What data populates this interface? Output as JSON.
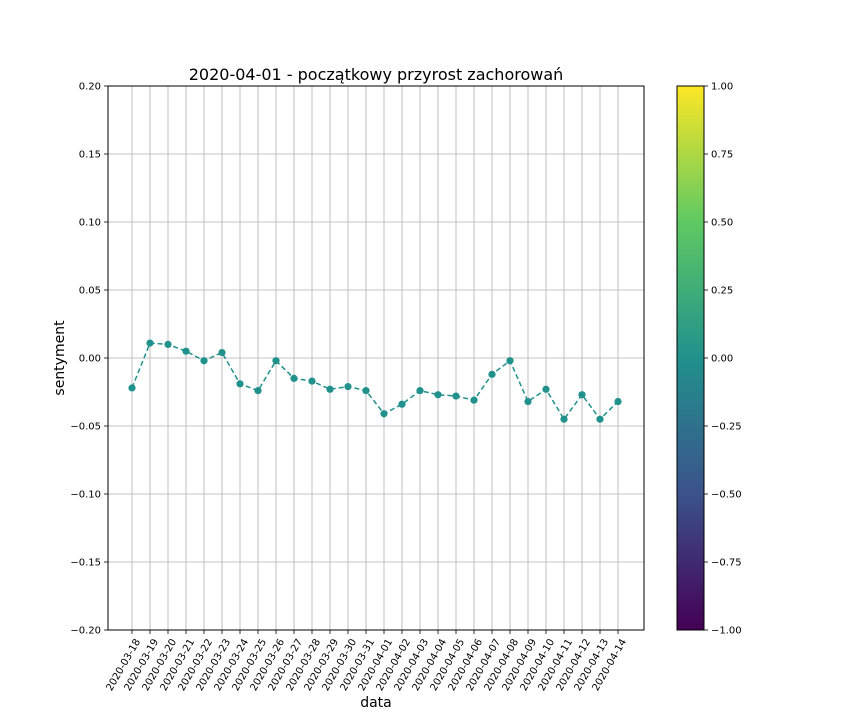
{
  "chart_data": {
    "type": "line",
    "title": "2020-04-01 - początkowy przyrost zachorowań",
    "xlabel": "data",
    "ylabel": "sentyment",
    "ylim": [
      -0.2,
      0.2
    ],
    "y_ticks": [
      "−0.20",
      "−0.15",
      "−0.10",
      "−0.05",
      "0.00",
      "0.05",
      "0.10",
      "0.15",
      "0.20"
    ],
    "grid": true,
    "marker": "circle",
    "line_style": "dashed",
    "line_color": "#21918c",
    "categories": [
      "2020-03-18",
      "2020-03-19",
      "2020-03-20",
      "2020-03-21",
      "2020-03-22",
      "2020-03-23",
      "2020-03-24",
      "2020-03-25",
      "2020-03-26",
      "2020-03-27",
      "2020-03-28",
      "2020-03-29",
      "2020-03-30",
      "2020-03-31",
      "2020-04-01",
      "2020-04-02",
      "2020-04-03",
      "2020-04-04",
      "2020-04-05",
      "2020-04-06",
      "2020-04-07",
      "2020-04-08",
      "2020-04-09",
      "2020-04-10",
      "2020-04-11",
      "2020-04-12",
      "2020-04-13",
      "2020-04-14"
    ],
    "values": [
      -0.022,
      0.011,
      0.01,
      0.005,
      -0.002,
      0.004,
      -0.019,
      -0.024,
      -0.002,
      -0.015,
      -0.017,
      -0.023,
      -0.021,
      -0.024,
      -0.041,
      -0.034,
      -0.024,
      -0.027,
      -0.028,
      -0.031,
      -0.012,
      -0.002,
      -0.032,
      -0.023,
      -0.045,
      -0.027,
      -0.045,
      -0.032
    ],
    "colorbar": {
      "colormap": "viridis",
      "range": [
        -1,
        1
      ],
      "ticks": [
        "−1.00",
        "−0.75",
        "−0.50",
        "−0.25",
        "0.00",
        "0.25",
        "0.50",
        "0.75",
        "1.00"
      ],
      "colors": [
        "#440154",
        "#3b528b",
        "#21918c",
        "#5ec962",
        "#fde725"
      ]
    }
  }
}
